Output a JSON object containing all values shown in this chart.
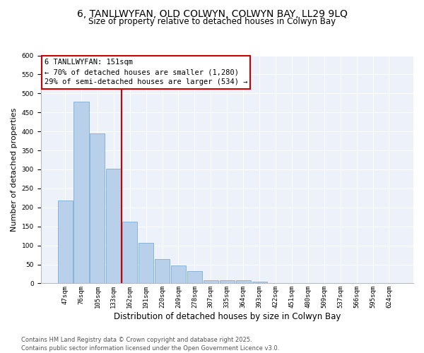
{
  "title": "6, TANLLWYFAN, OLD COLWYN, COLWYN BAY, LL29 9LQ",
  "subtitle": "Size of property relative to detached houses in Colwyn Bay",
  "xlabel": "Distribution of detached houses by size in Colwyn Bay",
  "ylabel": "Number of detached properties",
  "categories": [
    "47sqm",
    "76sqm",
    "105sqm",
    "133sqm",
    "162sqm",
    "191sqm",
    "220sqm",
    "249sqm",
    "278sqm",
    "307sqm",
    "335sqm",
    "364sqm",
    "393sqm",
    "422sqm",
    "451sqm",
    "480sqm",
    "509sqm",
    "537sqm",
    "566sqm",
    "595sqm",
    "624sqm"
  ],
  "values": [
    219,
    479,
    395,
    301,
    163,
    106,
    64,
    47,
    33,
    8,
    8,
    8,
    5,
    1,
    0,
    0,
    0,
    0,
    0,
    0,
    0
  ],
  "bar_color": "#b8d0ea",
  "bar_edgecolor": "#7aadd4",
  "vline_x": 3.5,
  "vline_color": "#cc0000",
  "annotation_line1": "6 TANLLWYFAN: 151sqm",
  "annotation_line2": "← 70% of detached houses are smaller (1,280)",
  "annotation_line3": "29% of semi-detached houses are larger (534) →",
  "annotation_box_edgecolor": "#cc0000",
  "background_color": "#edf1f9",
  "ylim": [
    0,
    600
  ],
  "yticks": [
    0,
    50,
    100,
    150,
    200,
    250,
    300,
    350,
    400,
    450,
    500,
    550,
    600
  ],
  "footer_line1": "Contains HM Land Registry data © Crown copyright and database right 2025.",
  "footer_line2": "Contains public sector information licensed under the Open Government Licence v3.0.",
  "title_fontsize": 10,
  "subtitle_fontsize": 8.5,
  "xlabel_fontsize": 8.5,
  "ylabel_fontsize": 8,
  "tick_fontsize": 6.5,
  "annot_fontsize": 7.5,
  "footer_fontsize": 6.0
}
